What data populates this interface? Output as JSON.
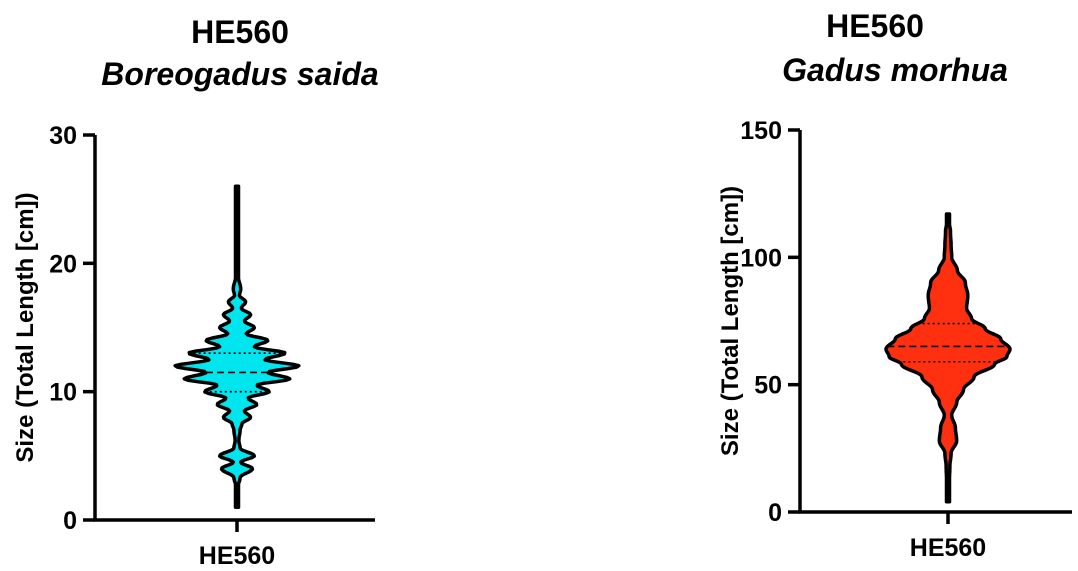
{
  "chart_data": [
    {
      "type": "violin",
      "title": "HE560",
      "subtitle": "Boreogadus saida",
      "ylabel": "Size (Total Length [cm])",
      "xlabel": "",
      "categories": [
        "HE560"
      ],
      "ylim": [
        0,
        30
      ],
      "yticks": [
        0,
        10,
        20,
        30
      ],
      "fill_color": "#00E5EE",
      "outline_color": "#000000",
      "median": 11.5,
      "quartiles": [
        10,
        13
      ],
      "range": [
        1,
        26
      ],
      "density": [
        {
          "y": 1.0,
          "w": 0.0
        },
        {
          "y": 2.5,
          "w": 0.01
        },
        {
          "y": 3.3,
          "w": 0.05
        },
        {
          "y": 4.0,
          "w": 0.25
        },
        {
          "y": 4.5,
          "w": 0.06
        },
        {
          "y": 5.0,
          "w": 0.28
        },
        {
          "y": 5.6,
          "w": 0.05
        },
        {
          "y": 6.2,
          "w": 0.03
        },
        {
          "y": 7.0,
          "w": 0.05
        },
        {
          "y": 7.5,
          "w": 0.08
        },
        {
          "y": 8.0,
          "w": 0.22
        },
        {
          "y": 8.5,
          "w": 0.12
        },
        {
          "y": 9.0,
          "w": 0.32
        },
        {
          "y": 9.5,
          "w": 0.18
        },
        {
          "y": 10.0,
          "w": 0.52
        },
        {
          "y": 10.5,
          "w": 0.32
        },
        {
          "y": 11.0,
          "w": 0.85
        },
        {
          "y": 11.5,
          "w": 0.5
        },
        {
          "y": 12.0,
          "w": 1.0
        },
        {
          "y": 12.5,
          "w": 0.45
        },
        {
          "y": 13.0,
          "w": 0.78
        },
        {
          "y": 13.5,
          "w": 0.28
        },
        {
          "y": 14.0,
          "w": 0.5
        },
        {
          "y": 14.5,
          "w": 0.15
        },
        {
          "y": 15.0,
          "w": 0.28
        },
        {
          "y": 15.5,
          "w": 0.12
        },
        {
          "y": 16.0,
          "w": 0.22
        },
        {
          "y": 16.5,
          "w": 0.07
        },
        {
          "y": 17.0,
          "w": 0.14
        },
        {
          "y": 17.5,
          "w": 0.04
        },
        {
          "y": 18.0,
          "w": 0.06
        },
        {
          "y": 19.0,
          "w": 0.02
        },
        {
          "y": 20.0,
          "w": 0.012
        },
        {
          "y": 23.0,
          "w": 0.01
        },
        {
          "y": 25.0,
          "w": 0.008
        },
        {
          "y": 26.0,
          "w": 0.0
        }
      ]
    },
    {
      "type": "violin",
      "title": "HE560",
      "subtitle": "Gadus morhua",
      "ylabel": "Size (Total Length [cm])",
      "xlabel": "",
      "categories": [
        "HE560"
      ],
      "ylim": [
        0,
        150
      ],
      "yticks": [
        0,
        50,
        100,
        150
      ],
      "fill_color": "#FF3010",
      "outline_color": "#000000",
      "median": 65,
      "quartiles": [
        59,
        74
      ],
      "range": [
        4,
        117
      ],
      "density": [
        {
          "y": 4,
          "w": 0.0
        },
        {
          "y": 10,
          "w": 0.02
        },
        {
          "y": 18,
          "w": 0.03
        },
        {
          "y": 23,
          "w": 0.05
        },
        {
          "y": 28,
          "w": 0.14
        },
        {
          "y": 33,
          "w": 0.12
        },
        {
          "y": 38,
          "w": 0.06
        },
        {
          "y": 43,
          "w": 0.14
        },
        {
          "y": 48,
          "w": 0.25
        },
        {
          "y": 53,
          "w": 0.42
        },
        {
          "y": 58,
          "w": 0.75
        },
        {
          "y": 61,
          "w": 0.95
        },
        {
          "y": 64,
          "w": 1.0
        },
        {
          "y": 68,
          "w": 0.85
        },
        {
          "y": 72,
          "w": 0.6
        },
        {
          "y": 76,
          "w": 0.38
        },
        {
          "y": 80,
          "w": 0.3
        },
        {
          "y": 85,
          "w": 0.32
        },
        {
          "y": 90,
          "w": 0.28
        },
        {
          "y": 95,
          "w": 0.15
        },
        {
          "y": 100,
          "w": 0.06
        },
        {
          "y": 105,
          "w": 0.05
        },
        {
          "y": 110,
          "w": 0.04
        },
        {
          "y": 114,
          "w": 0.02
        },
        {
          "y": 117,
          "w": 0.0
        }
      ]
    }
  ]
}
